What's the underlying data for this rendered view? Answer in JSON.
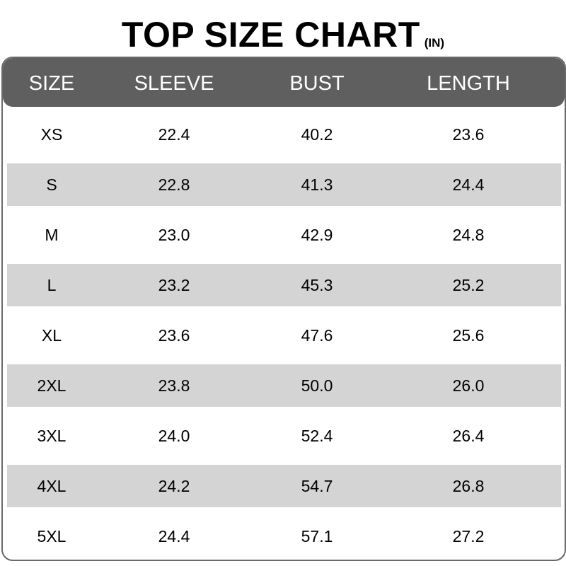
{
  "title": "TOP SIZE CHART",
  "unit": "(IN)",
  "colors": {
    "header_bg": "#5f5f5f",
    "header_text": "#ffffff",
    "stripe": "#d4d4d4",
    "border": "#6a6a6a"
  },
  "chart_data": {
    "type": "table",
    "title": "TOP SIZE CHART",
    "unit": "(IN)",
    "columns": [
      "SIZE",
      "SLEEVE",
      "BUST",
      "LENGTH"
    ],
    "rows": [
      [
        "XS",
        "22.4",
        "40.2",
        "23.6"
      ],
      [
        "S",
        "22.8",
        "41.3",
        "24.4"
      ],
      [
        "M",
        "23.0",
        "42.9",
        "24.8"
      ],
      [
        "L",
        "23.2",
        "45.3",
        "25.2"
      ],
      [
        "XL",
        "23.6",
        "47.6",
        "25.6"
      ],
      [
        "2XL",
        "23.8",
        "50.0",
        "26.0"
      ],
      [
        "3XL",
        "24.0",
        "52.4",
        "26.4"
      ],
      [
        "4XL",
        "24.2",
        "54.7",
        "26.8"
      ],
      [
        "5XL",
        "24.4",
        "57.1",
        "27.2"
      ]
    ]
  }
}
